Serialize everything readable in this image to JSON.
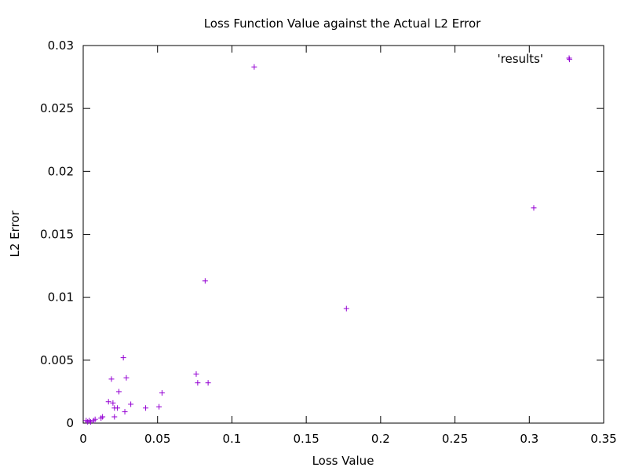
{
  "chart_data": {
    "type": "scatter",
    "title": "Loss Function Value against the Actual L2 Error",
    "xlabel": "Loss Value",
    "ylabel": "L2 Error",
    "xlim": [
      0,
      0.35
    ],
    "ylim": [
      0,
      0.03
    ],
    "x_ticks": [
      "0",
      "0.05",
      "0.1",
      "0.15",
      "0.2",
      "0.25",
      "0.3",
      "0.35"
    ],
    "y_ticks": [
      "0",
      "0.005",
      "0.01",
      "0.015",
      "0.02",
      "0.025",
      "0.03"
    ],
    "grid": false,
    "legend_position": "top-right",
    "series": [
      {
        "name": "'results'",
        "color": "#9400d3",
        "marker": "plus",
        "points": [
          [
            0.002,
            0.0002
          ],
          [
            0.003,
            0.0001
          ],
          [
            0.004,
            0.0002
          ],
          [
            0.005,
            0.0001
          ],
          [
            0.007,
            0.0002
          ],
          [
            0.008,
            0.0003
          ],
          [
            0.012,
            0.0004
          ],
          [
            0.013,
            0.0005
          ],
          [
            0.017,
            0.0017
          ],
          [
            0.019,
            0.0035
          ],
          [
            0.02,
            0.0016
          ],
          [
            0.021,
            0.0012
          ],
          [
            0.021,
            0.0005
          ],
          [
            0.023,
            0.0012
          ],
          [
            0.024,
            0.0025
          ],
          [
            0.027,
            0.0052
          ],
          [
            0.028,
            0.0009
          ],
          [
            0.029,
            0.0036
          ],
          [
            0.032,
            0.0015
          ],
          [
            0.042,
            0.0012
          ],
          [
            0.051,
            0.0013
          ],
          [
            0.053,
            0.0024
          ],
          [
            0.076,
            0.0039
          ],
          [
            0.077,
            0.0032
          ],
          [
            0.082,
            0.0113
          ],
          [
            0.084,
            0.0032
          ],
          [
            0.115,
            0.0283
          ],
          [
            0.177,
            0.0091
          ],
          [
            0.303,
            0.0171
          ],
          [
            0.327,
            0.0289
          ]
        ]
      }
    ]
  }
}
